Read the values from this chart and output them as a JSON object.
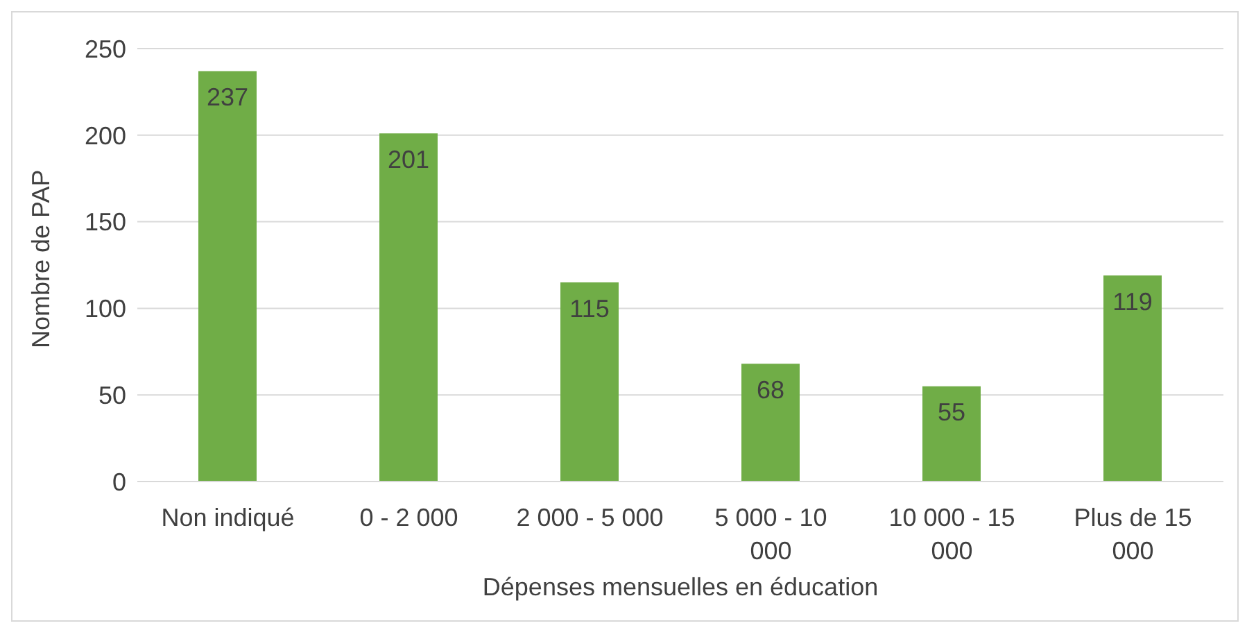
{
  "chart_data": {
    "type": "bar",
    "xlabel": "Dépenses mensuelles en éducation",
    "ylabel": "Nombre de PAP",
    "categories": [
      "Non indiqué",
      "0 - 2 000",
      "2 000 - 5 000",
      "5 000 - 10 000",
      "10 000 -  15 000",
      "Plus de 15 000"
    ],
    "values": [
      237,
      201,
      115,
      68,
      55,
      119
    ],
    "color": "#70ad47",
    "ylim": [
      0,
      250
    ],
    "yticks": [
      0,
      50,
      100,
      150,
      200,
      250
    ],
    "grid": "y",
    "data_labels": true
  }
}
